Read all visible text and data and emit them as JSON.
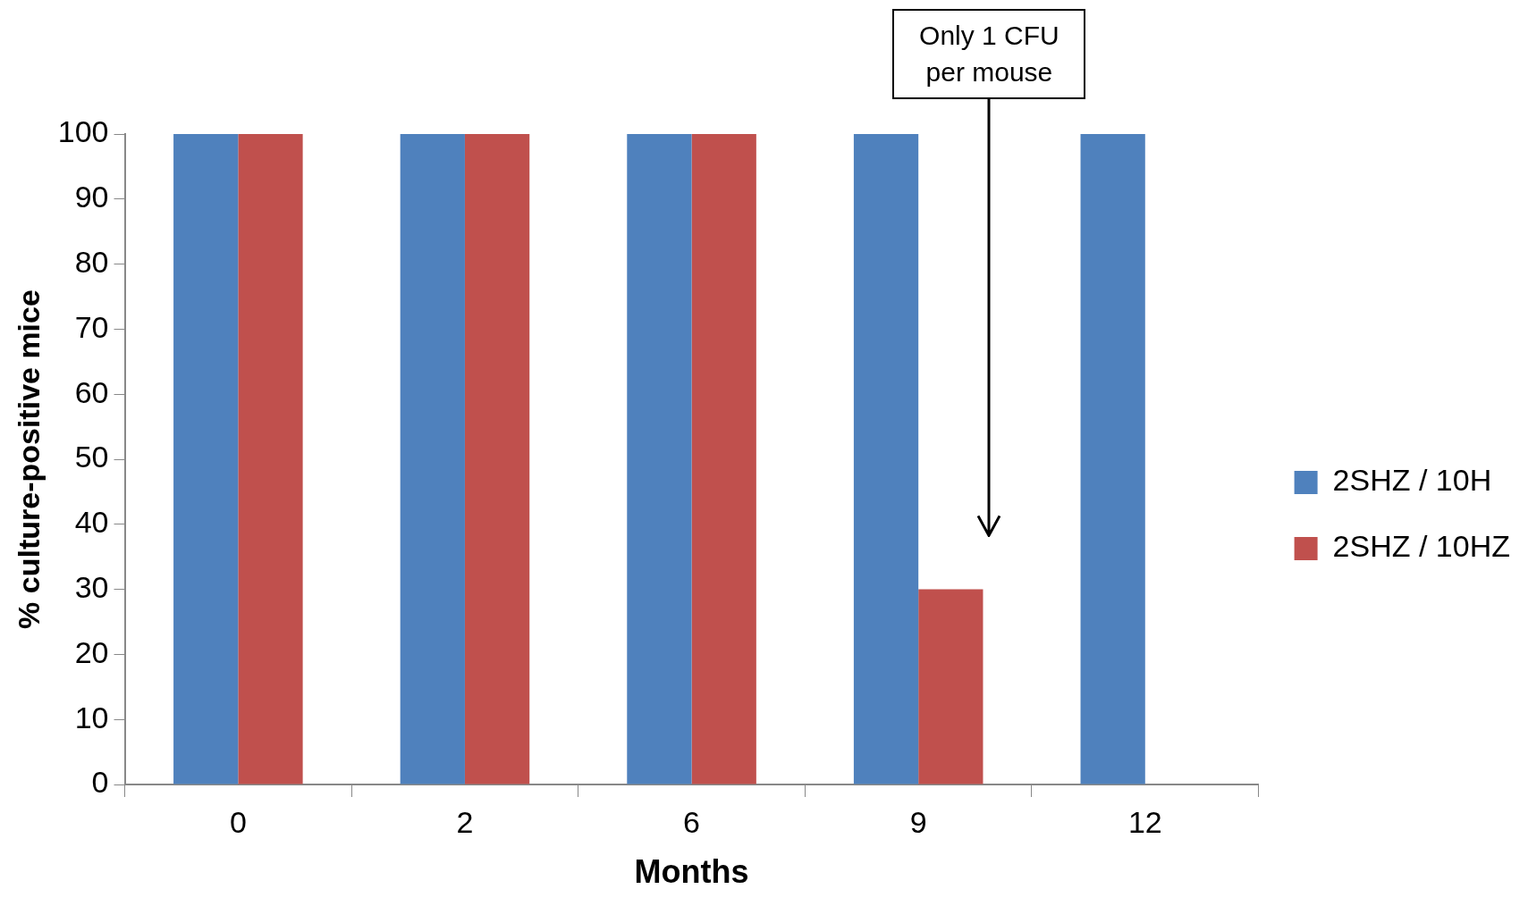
{
  "chart_data": {
    "type": "bar",
    "xlabel": "Months",
    "ylabel": "% culture-positive mice",
    "categories": [
      "0",
      "2",
      "6",
      "9",
      "12"
    ],
    "series": [
      {
        "name": "2SHZ / 10H",
        "color": "#4f81bd",
        "values": [
          100,
          100,
          100,
          100,
          100
        ]
      },
      {
        "name": "2SHZ / 10HZ",
        "color": "#c0504d",
        "values": [
          100,
          100,
          100,
          30,
          0
        ]
      }
    ],
    "ylim": [
      0,
      100
    ],
    "yticks": [
      0,
      10,
      20,
      30,
      40,
      50,
      60,
      70,
      80,
      90,
      100
    ],
    "grid": false,
    "legend": "right",
    "annotations": [
      "Only 1 CFU per mouse"
    ]
  }
}
